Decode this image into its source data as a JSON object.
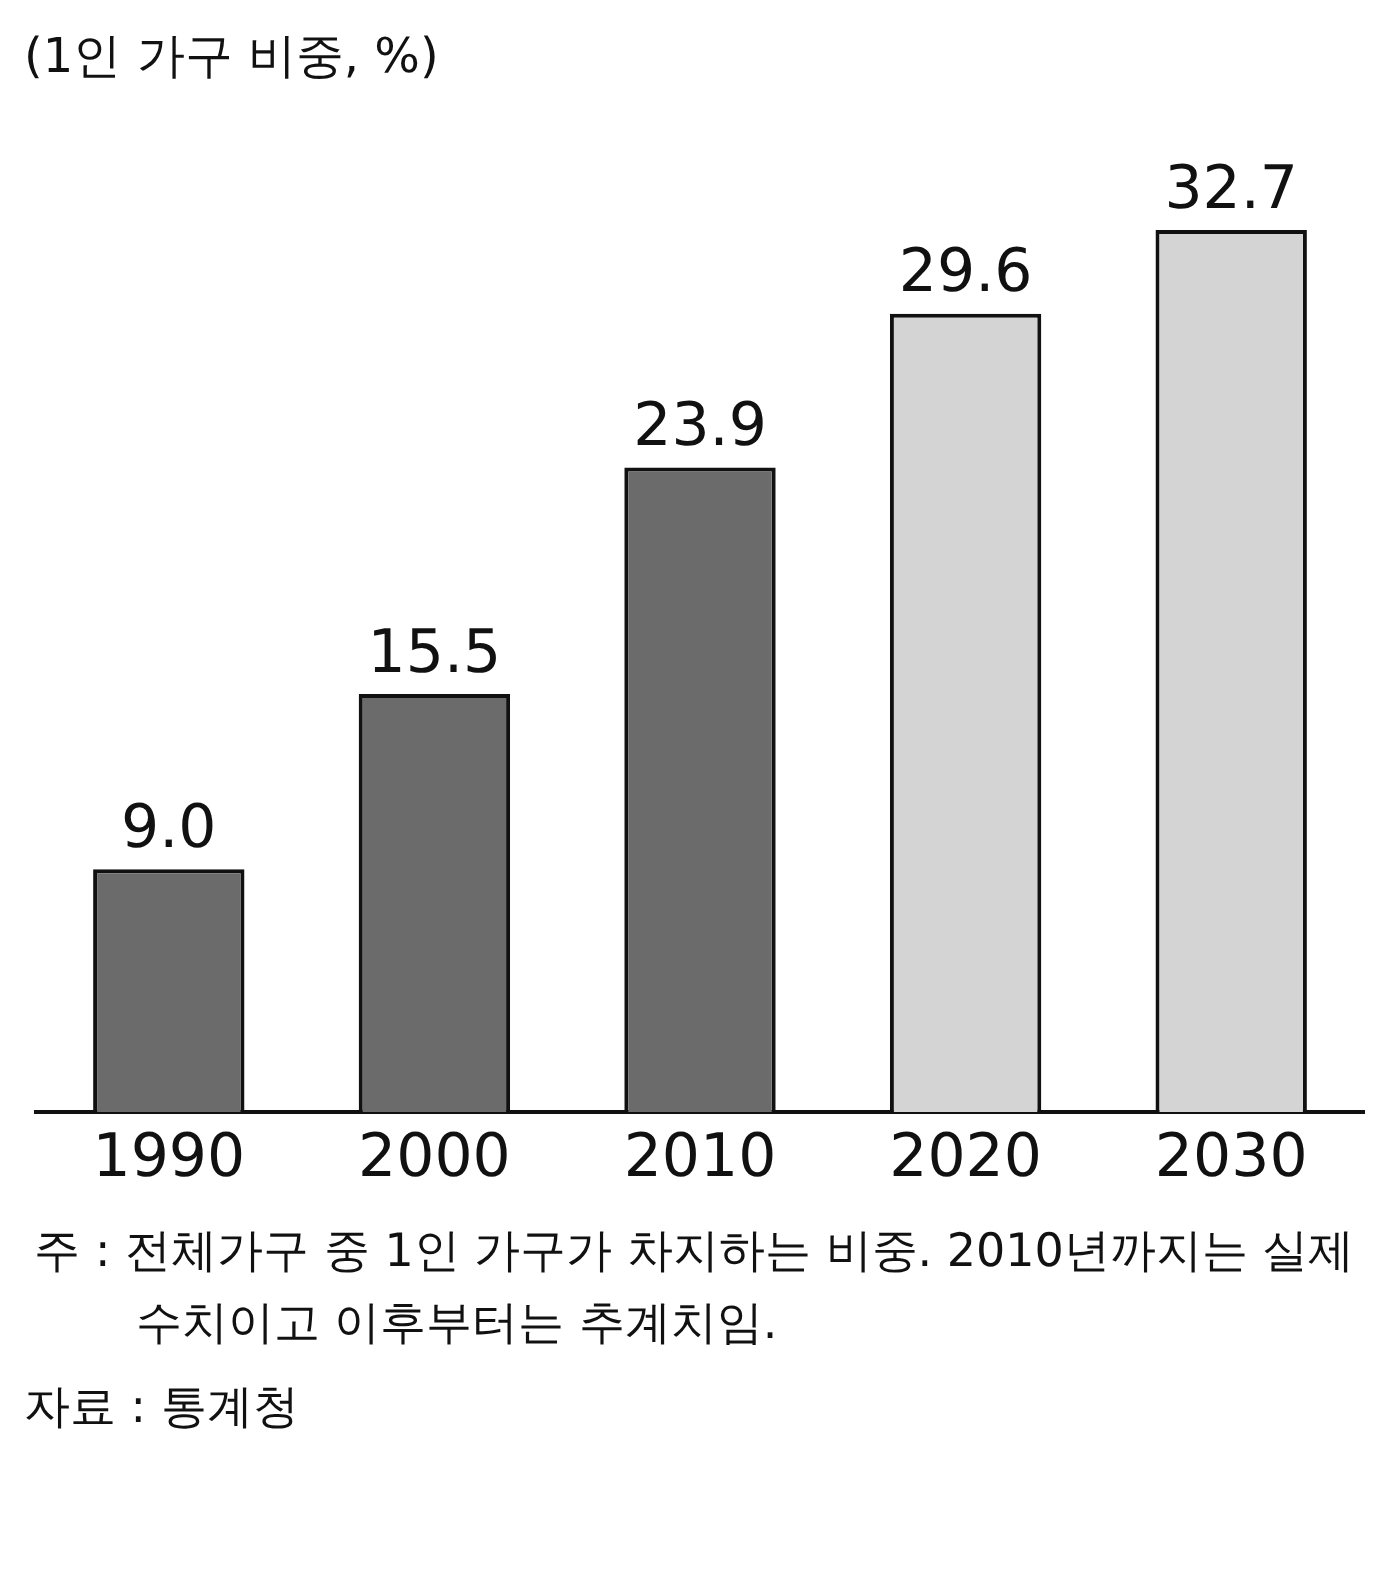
{
  "chart_data": {
    "type": "bar",
    "ylabel": "(1인 가구 비중, %)",
    "categories": [
      "1990",
      "2000",
      "2010",
      "2020",
      "2030"
    ],
    "values": [
      9.0,
      15.5,
      23.9,
      29.6,
      32.7
    ],
    "value_labels": [
      "9.0",
      "15.5",
      "23.9",
      "29.6",
      "32.7"
    ],
    "colors": [
      "#6b6b6b",
      "#6b6b6b",
      "#6b6b6b",
      "#d4d4d4",
      "#d4d4d4"
    ],
    "annotations": [
      "주 : 전체가구 중 1인 가구가 차지하는 비중. 2010년까지는 실제수치이고 이후부터는 추계치임.",
      "자료 : 통계청"
    ],
    "legend": false
  }
}
